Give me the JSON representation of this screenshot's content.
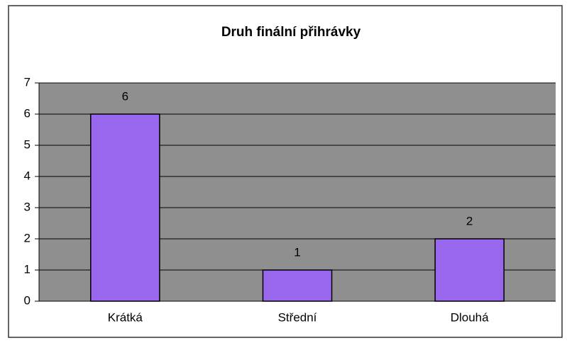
{
  "chart_data": {
    "type": "bar",
    "title": "Druh finální přihrávky",
    "categories": [
      "Krátká",
      "Střední",
      "Dlouhá"
    ],
    "values": [
      6,
      1,
      2
    ],
    "color": "#9966ee",
    "ylim": [
      0,
      7
    ],
    "yticks": [
      0,
      1,
      2,
      3,
      4,
      5,
      6,
      7
    ],
    "grid": true
  }
}
